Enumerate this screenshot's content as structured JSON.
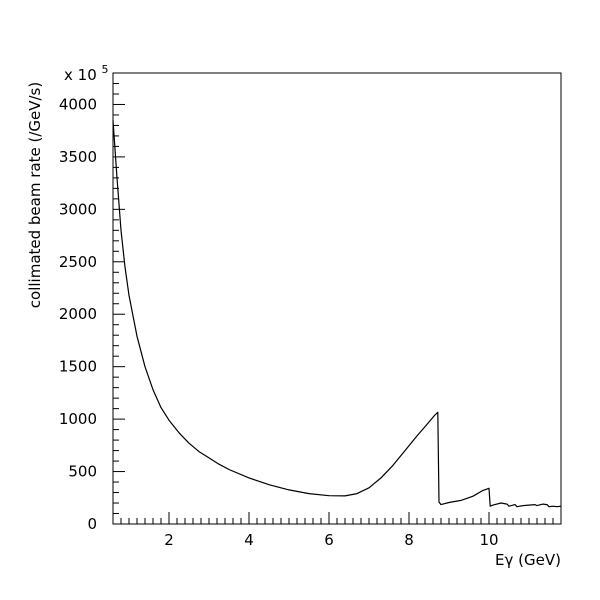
{
  "chart_data": {
    "type": "line",
    "title": "",
    "xlabel": "Eγ (GeV)",
    "ylabel": "collimated beam rate (/GeV/s)",
    "y_multiplier_text": "x 10",
    "y_multiplier_exponent": "5",
    "xlim": [
      0.6,
      11.8
    ],
    "ylim": [
      0,
      4300
    ],
    "x_ticks": [
      2,
      4,
      6,
      8,
      10
    ],
    "x_tick_labels": [
      "2",
      "4",
      "6",
      "8",
      "10"
    ],
    "y_ticks": [
      0,
      500,
      1000,
      1500,
      2000,
      2500,
      3000,
      3500,
      4000
    ],
    "y_tick_labels": [
      "0",
      "500",
      "1000",
      "1500",
      "2000",
      "2500",
      "3000",
      "3500",
      "4000"
    ],
    "grid": false,
    "series": [
      {
        "x": [
          0.6,
          0.7,
          0.8,
          0.9,
          1.0,
          1.2,
          1.4,
          1.6,
          1.8,
          2.0,
          2.25,
          2.5,
          2.75,
          3.0,
          3.25,
          3.5,
          4.0,
          4.5,
          5.0,
          5.5,
          6.0,
          6.4,
          6.7,
          7.0,
          7.3,
          7.6,
          7.9,
          8.2,
          8.45,
          8.65,
          8.72,
          8.75,
          8.8,
          9.0,
          9.3,
          9.6,
          9.85,
          10.0,
          10.03,
          10.1,
          10.3,
          10.45,
          10.5,
          10.65,
          10.7,
          10.85,
          11.0,
          11.15,
          11.2,
          11.35,
          11.45,
          11.5,
          11.6,
          11.7,
          11.8
        ],
        "y": [
          3850,
          3300,
          2800,
          2450,
          2180,
          1790,
          1500,
          1280,
          1110,
          990,
          870,
          770,
          690,
          630,
          570,
          520,
          440,
          375,
          325,
          290,
          270,
          268,
          290,
          345,
          440,
          560,
          700,
          840,
          950,
          1040,
          1065,
          210,
          185,
          205,
          225,
          265,
          320,
          340,
          170,
          180,
          200,
          190,
          170,
          185,
          165,
          175,
          180,
          185,
          175,
          190,
          185,
          165,
          170,
          165,
          170
        ]
      }
    ]
  }
}
